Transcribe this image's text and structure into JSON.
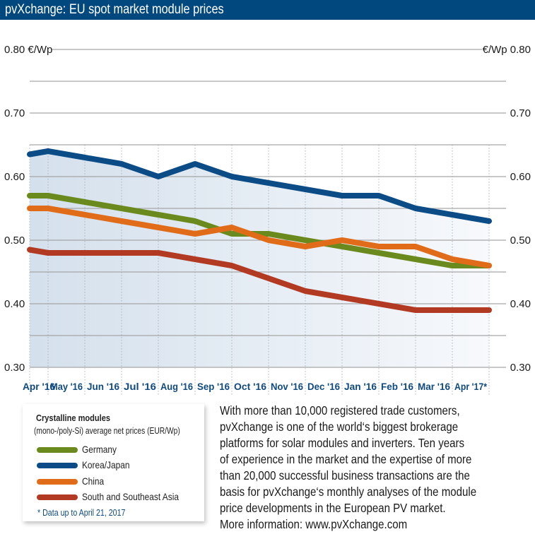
{
  "header": {
    "title": "pvXchange: EU spot market module prices"
  },
  "chart_data": {
    "type": "line",
    "title": "pvXchange: EU spot market module prices",
    "ylabel_left": "0.80 €/Wp",
    "ylabel_right": "€/Wp 0.80",
    "ylim": [
      0.3,
      0.8
    ],
    "y_ticks": [
      {
        "value": 0.8,
        "left": "0.80 €/Wp",
        "right": "€/Wp 0.80"
      },
      {
        "value": 0.7,
        "left": "0.70",
        "right": "0.70"
      },
      {
        "value": 0.6,
        "left": "0.60",
        "right": "0.60"
      },
      {
        "value": 0.5,
        "left": "0.50",
        "right": "0.50"
      },
      {
        "value": 0.4,
        "left": "0.40",
        "right": "0.40"
      },
      {
        "value": 0.3,
        "left": "0.30",
        "right": "0.30"
      }
    ],
    "minor_gridlines": [
      0.75,
      0.65,
      0.55,
      0.45,
      0.35
    ],
    "grid": true,
    "categories": [
      "Apr '16",
      "May '16",
      "Jun '16",
      "Jul '16",
      "Aug '16",
      "Sep '16",
      "Oct '16",
      "Nov '16",
      "Dec '16",
      "Jan '16",
      "Feb '16",
      "Mar '16",
      "Apr '17*"
    ],
    "x": [
      0,
      0.5,
      1.5,
      2.5,
      3.5,
      4.5,
      5.5,
      6.5,
      7.5,
      8.5,
      9.5,
      10.5,
      11.5,
      12.5
    ],
    "series": [
      {
        "name": "Germany",
        "color": "#6b8a1d",
        "values": [
          0.57,
          0.57,
          0.56,
          0.55,
          0.54,
          0.53,
          0.51,
          0.51,
          0.5,
          0.49,
          0.48,
          0.47,
          0.46,
          0.46
        ]
      },
      {
        "name": "Korea/Japan",
        "color": "#0b4c86",
        "values": [
          0.635,
          0.64,
          0.63,
          0.62,
          0.6,
          0.62,
          0.6,
          0.59,
          0.58,
          0.57,
          0.57,
          0.55,
          0.54,
          0.53
        ]
      },
      {
        "name": "China",
        "color": "#e06c1a",
        "values": [
          0.55,
          0.55,
          0.54,
          0.53,
          0.52,
          0.51,
          0.52,
          0.5,
          0.49,
          0.5,
          0.49,
          0.49,
          0.47,
          0.46
        ]
      },
      {
        "name": "South and Southeast Asia",
        "color": "#b33a22",
        "values": [
          0.485,
          0.48,
          0.48,
          0.48,
          0.48,
          0.47,
          0.46,
          0.44,
          0.42,
          0.41,
          0.4,
          0.39,
          0.39,
          0.39
        ]
      }
    ],
    "legend": {
      "heading": "Crystalline modules",
      "subheading": "(mono-/poly-Si) average net prices (EUR/Wp)",
      "placement": "bottom-left",
      "note": "* Data up to April 21, 2017"
    }
  },
  "description": {
    "lines": [
      "With more than 10,000 registered trade customers,",
      "pvXchange is one of the world‘s biggest brokerage",
      "platforms for solar modules and inverters. Ten years",
      "of experience in the market and the expertise of more",
      "than 20,000 successful business transactions are the",
      "basis for pvXchange‘s monthly analyses of the module",
      "price developments in the European PV market.",
      "More information: www.pvXchange.com"
    ]
  }
}
